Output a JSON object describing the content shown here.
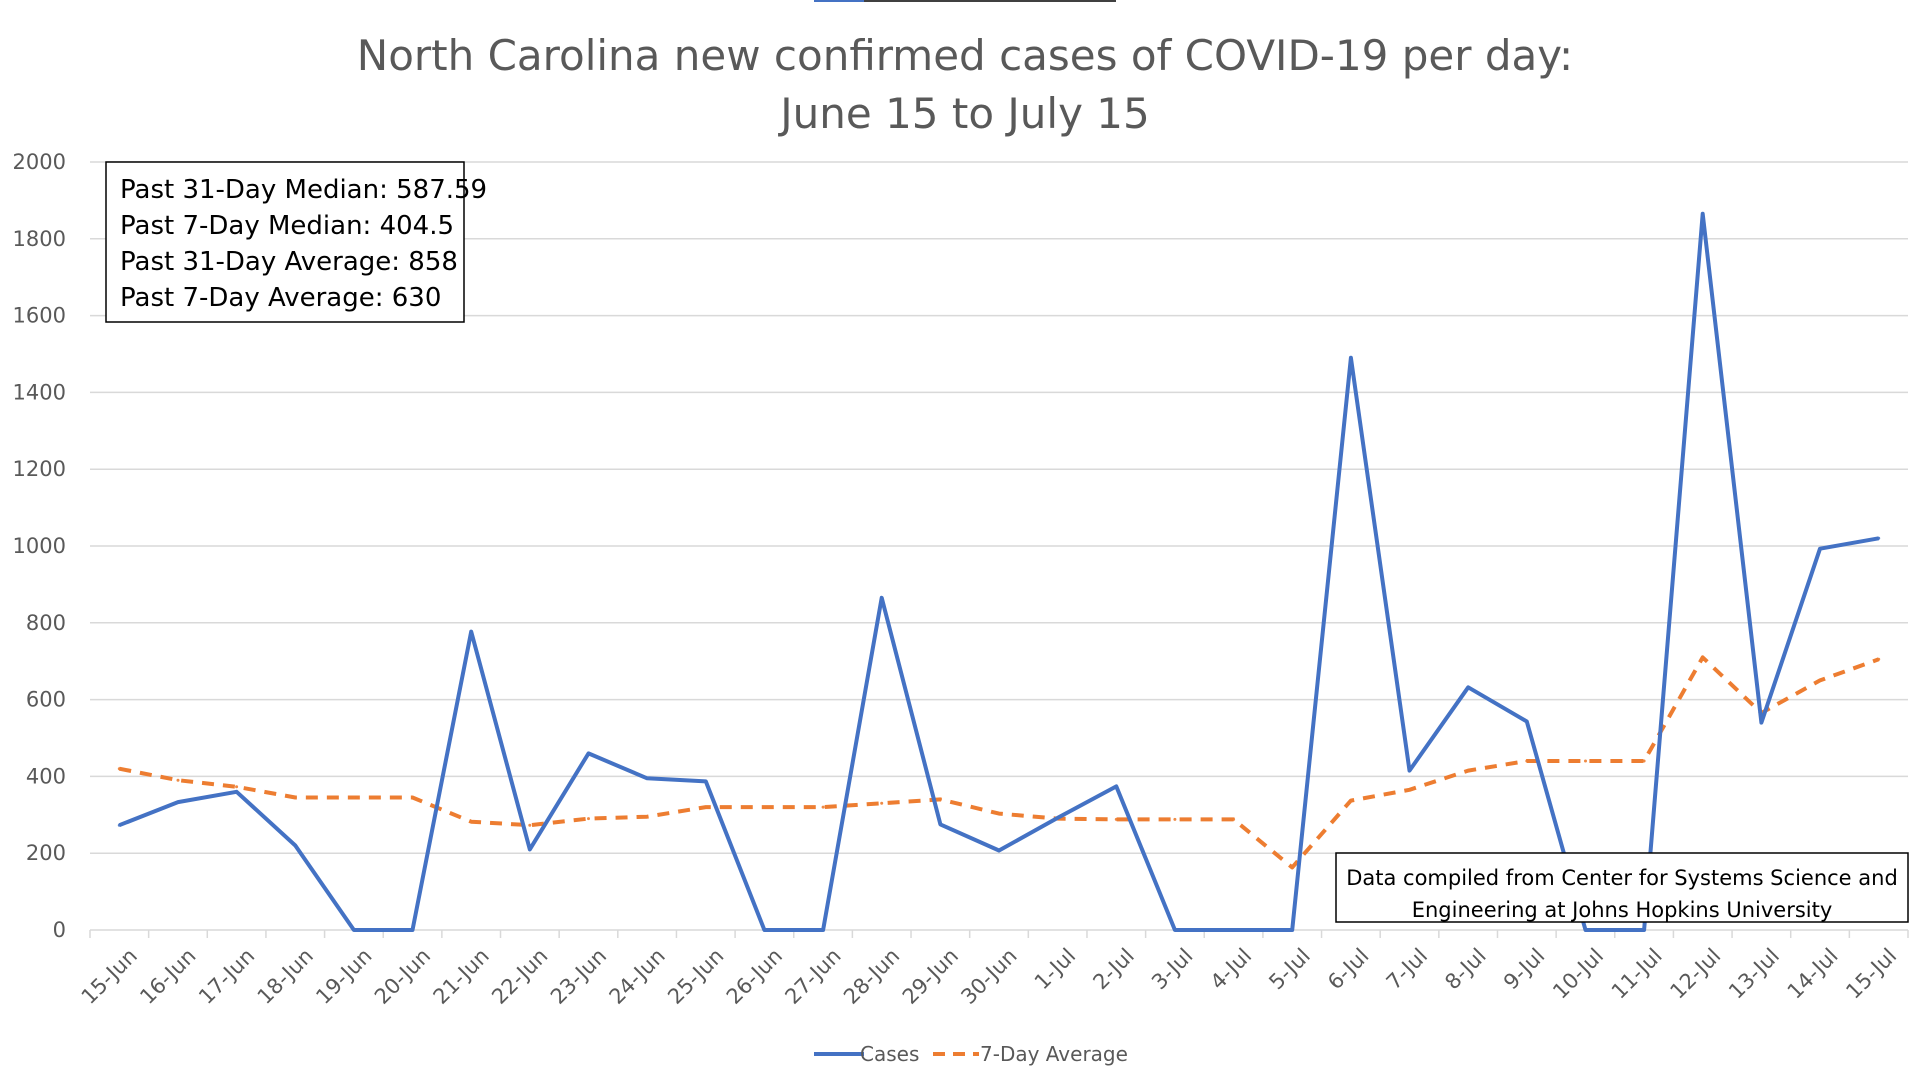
{
  "chart_data": {
    "type": "line",
    "title_lines": [
      "North Carolina new confirmed cases of COVID-19 per day:",
      "June 15 to July 15"
    ],
    "xlabel": "",
    "ylabel": "",
    "ylim": [
      0,
      2000
    ],
    "yticks": [
      0,
      200,
      400,
      600,
      800,
      1000,
      1200,
      1400,
      1600,
      1800,
      2000
    ],
    "grid": "horizontal",
    "legend_position": "bottom",
    "categories": [
      "15-Jun",
      "16-Jun",
      "17-Jun",
      "18-Jun",
      "19-Jun",
      "20-Jun",
      "21-Jun",
      "22-Jun",
      "23-Jun",
      "24-Jun",
      "25-Jun",
      "26-Jun",
      "27-Jun",
      "28-Jun",
      "29-Jun",
      "30-Jun",
      "1-Jul",
      "2-Jul",
      "3-Jul",
      "4-Jul",
      "5-Jul",
      "6-Jul",
      "7-Jul",
      "8-Jul",
      "9-Jul",
      "10-Jul",
      "11-Jul",
      "12-Jul",
      "13-Jul",
      "14-Jul",
      "15-Jul"
    ],
    "series": [
      {
        "name": "Cases",
        "color": "#4472C4",
        "style": "solid",
        "values": [
          273,
          333,
          360,
          220,
          0,
          0,
          777,
          210,
          460,
          395,
          387,
          0,
          0,
          865,
          275,
          207,
          292,
          374,
          0,
          0,
          0,
          1490,
          415,
          632,
          543,
          0,
          0,
          1865,
          540,
          993,
          1020
        ]
      },
      {
        "name": "7-Day Average",
        "color": "#ED7D31",
        "style": "dashed",
        "values": [
          420,
          390,
          373,
          345,
          345,
          345,
          282,
          273,
          290,
          295,
          320,
          320,
          320,
          330,
          340,
          303,
          290,
          288,
          288,
          288,
          163,
          337,
          365,
          415,
          440,
          440,
          440,
          710,
          565,
          650,
          705
        ]
      }
    ],
    "annotations": {
      "stats_box": [
        "Past 31-Day Median: 587.59",
        "Past 7-Day Median: 404.5",
        "Past 31-Day Average: 858",
        "Past 7-Day Average: 630"
      ],
      "source_box": [
        "Data compiled from Center for Systems Science and",
        "Engineering at Johns Hopkins University"
      ]
    }
  }
}
